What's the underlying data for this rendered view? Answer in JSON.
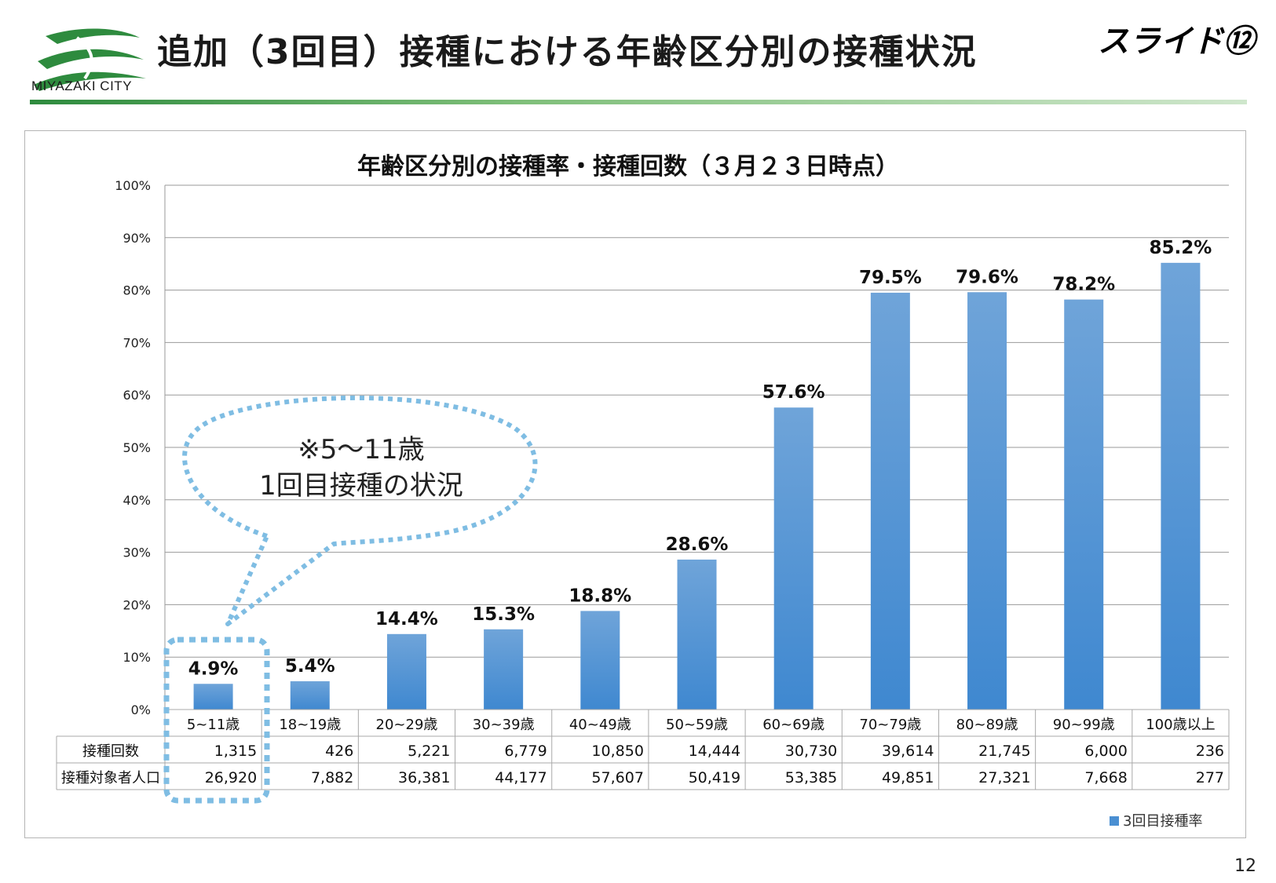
{
  "header": {
    "logo_text": "MIYAZAKI CITY",
    "title": "追加（3回目）接種における年齢区分別の接種状況",
    "slide_label": "スライド⑫"
  },
  "page_number": "12",
  "callout": {
    "line1": "※5～11歳",
    "line2": "1回目接種の状況"
  },
  "colors": {
    "bar_top": "#6fa4d9",
    "bar_bottom": "#3f88d0",
    "highlight": "#7fbde3",
    "grid": "#9a9a9a",
    "brand_green": "#2e8b3e"
  },
  "chart_data": {
    "type": "bar",
    "title": "年齢区分別の接種率・接種回数（３月２３日時点）",
    "categories": [
      "5~11歳",
      "18~19歳",
      "20~29歳",
      "30~39歳",
      "40~49歳",
      "50~59歳",
      "60~69歳",
      "70~79歳",
      "80~89歳",
      "90~99歳",
      "100歳以上"
    ],
    "series": [
      {
        "name": "3回目接種率",
        "values": [
          4.9,
          5.4,
          14.4,
          15.3,
          18.8,
          28.6,
          57.6,
          79.5,
          79.6,
          78.2,
          85.2
        ],
        "labels": [
          "4.9%",
          "5.4%",
          "14.4%",
          "15.3%",
          "18.8%",
          "28.6%",
          "57.6%",
          "79.5%",
          "79.6%",
          "78.2%",
          "85.2%"
        ]
      }
    ],
    "ylim": [
      0,
      100
    ],
    "yticks": [
      "0%",
      "10%",
      "20%",
      "30%",
      "40%",
      "50%",
      "60%",
      "70%",
      "80%",
      "90%",
      "100%"
    ],
    "grid": true,
    "legend_position": "bottom-right",
    "table": {
      "rows": [
        {
          "label": "接種回数",
          "values": [
            "1,315",
            "426",
            "5,221",
            "6,779",
            "10,850",
            "14,444",
            "30,730",
            "39,614",
            "21,745",
            "6,000",
            "236"
          ]
        },
        {
          "label": "接種対象者人口",
          "values": [
            "26,920",
            "7,882",
            "36,381",
            "44,177",
            "57,607",
            "50,419",
            "53,385",
            "49,851",
            "27,321",
            "7,668",
            "277"
          ]
        }
      ]
    }
  }
}
